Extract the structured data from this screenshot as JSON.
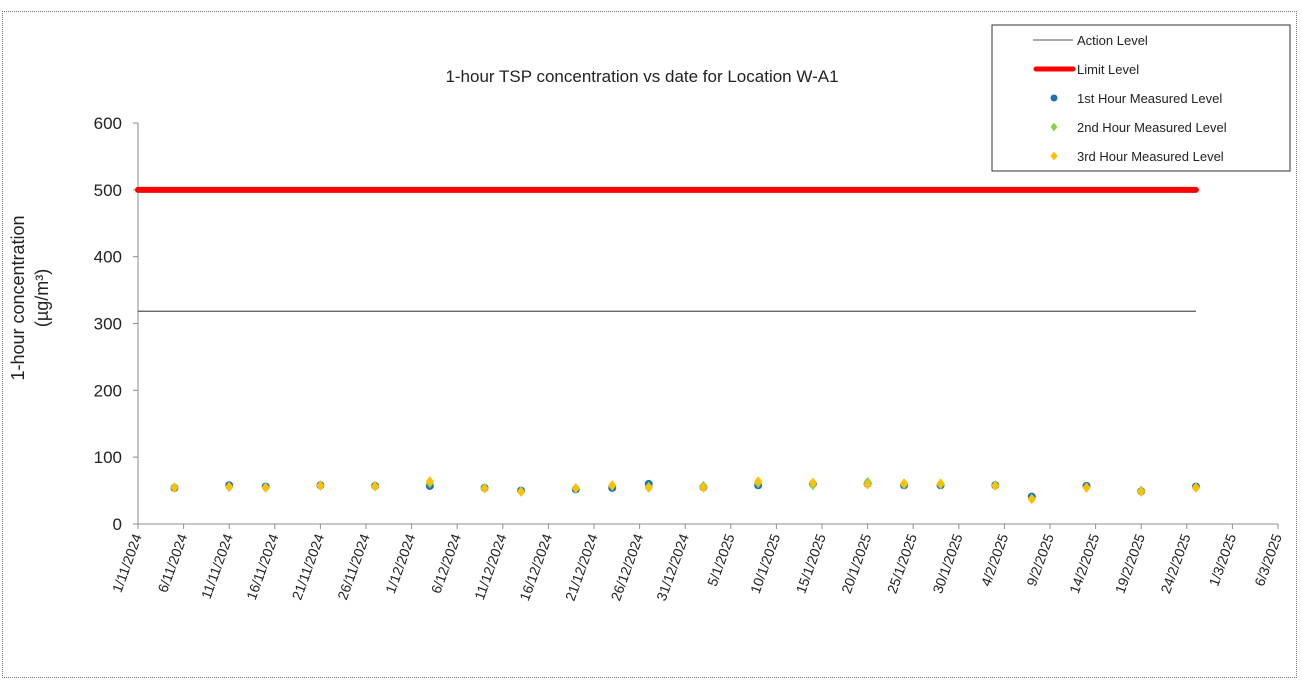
{
  "chart_data": {
    "type": "scatter",
    "title": "1-hour TSP concentration vs date for Location W-A1",
    "ylabel_line1": "1-hour concentration",
    "ylabel_line2": "(µg/m³)",
    "xlabel": "",
    "ylim": [
      0,
      600
    ],
    "yticks": [
      0,
      100,
      200,
      300,
      400,
      500,
      600
    ],
    "xlim": [
      "2024-11-01",
      "2025-03-06"
    ],
    "xtick_labels": [
      "1/11/2024",
      "6/11/2024",
      "11/11/2024",
      "16/11/2024",
      "21/11/2024",
      "26/11/2024",
      "1/12/2024",
      "6/12/2024",
      "11/12/2024",
      "16/12/2024",
      "21/12/2024",
      "26/12/2024",
      "31/12/2024",
      "5/1/2025",
      "10/1/2025",
      "15/1/2025",
      "20/1/2025",
      "25/1/2025",
      "30/1/2025",
      "4/2/2025",
      "9/2/2025",
      "14/2/2025",
      "19/2/2025",
      "24/2/2025",
      "1/3/2025",
      "6/3/2025"
    ],
    "grid": false,
    "legend_position": "top-right",
    "reference_lines": [
      {
        "name": "Action Level",
        "value": 318.3,
        "from": "2024-11-01",
        "to": "2025-02-25",
        "color": "#555555"
      },
      {
        "name": "Limit Level",
        "value": 500,
        "from": "2024-11-01",
        "to": "2025-02-25",
        "color": "#ff0000"
      }
    ],
    "series": [
      {
        "name": "1st Hour Measured Level",
        "marker": "circle",
        "color": "#1f6fb4",
        "points": [
          [
            "2024-11-05",
            54
          ],
          [
            "2024-11-11",
            58
          ],
          [
            "2024-11-15",
            56
          ],
          [
            "2024-11-21",
            58
          ],
          [
            "2024-11-27",
            57
          ],
          [
            "2024-12-03",
            57
          ],
          [
            "2024-12-09",
            54
          ],
          [
            "2024-12-13",
            50
          ],
          [
            "2024-12-19",
            52
          ],
          [
            "2024-12-23",
            54
          ],
          [
            "2024-12-27",
            60
          ],
          [
            "2025-01-02",
            55
          ],
          [
            "2025-01-08",
            58
          ],
          [
            "2025-01-14",
            60
          ],
          [
            "2025-01-20",
            60
          ],
          [
            "2025-01-24",
            58
          ],
          [
            "2025-01-28",
            58
          ],
          [
            "2025-02-03",
            58
          ],
          [
            "2025-02-07",
            41
          ],
          [
            "2025-02-13",
            57
          ],
          [
            "2025-02-19",
            49
          ],
          [
            "2025-02-25",
            56
          ]
        ]
      },
      {
        "name": "2nd Hour Measured Level",
        "marker": "diamond",
        "color": "#8ed04a",
        "points": [
          [
            "2024-11-05",
            55
          ],
          [
            "2024-11-11",
            55
          ],
          [
            "2024-11-15",
            55
          ],
          [
            "2024-11-21",
            58
          ],
          [
            "2024-11-27",
            57
          ],
          [
            "2024-12-03",
            61
          ],
          [
            "2024-12-09",
            54
          ],
          [
            "2024-12-13",
            49
          ],
          [
            "2024-12-19",
            53
          ],
          [
            "2024-12-23",
            57
          ],
          [
            "2024-12-27",
            56
          ],
          [
            "2025-01-02",
            57
          ],
          [
            "2025-01-08",
            61
          ],
          [
            "2025-01-14",
            58
          ],
          [
            "2025-01-20",
            63
          ],
          [
            "2025-01-24",
            59
          ],
          [
            "2025-01-28",
            59
          ],
          [
            "2025-02-03",
            58
          ],
          [
            "2025-02-07",
            38
          ],
          [
            "2025-02-13",
            55
          ],
          [
            "2025-02-19",
            50
          ],
          [
            "2025-02-25",
            55
          ]
        ]
      },
      {
        "name": "3rd Hour Measured Level",
        "marker": "diamond",
        "color": "#ffc000",
        "points": [
          [
            "2024-11-05",
            54
          ],
          [
            "2024-11-11",
            56
          ],
          [
            "2024-11-15",
            54
          ],
          [
            "2024-11-21",
            57
          ],
          [
            "2024-11-27",
            56
          ],
          [
            "2024-12-03",
            64
          ],
          [
            "2024-12-09",
            53
          ],
          [
            "2024-12-13",
            48
          ],
          [
            "2024-12-19",
            54
          ],
          [
            "2024-12-23",
            58
          ],
          [
            "2024-12-27",
            54
          ],
          [
            "2025-01-02",
            54
          ],
          [
            "2025-01-08",
            64
          ],
          [
            "2025-01-14",
            62
          ],
          [
            "2025-01-20",
            59
          ],
          [
            "2025-01-24",
            61
          ],
          [
            "2025-01-28",
            61
          ],
          [
            "2025-02-03",
            57
          ],
          [
            "2025-02-07",
            37
          ],
          [
            "2025-02-13",
            54
          ],
          [
            "2025-02-19",
            48
          ],
          [
            "2025-02-25",
            54
          ]
        ]
      }
    ]
  }
}
